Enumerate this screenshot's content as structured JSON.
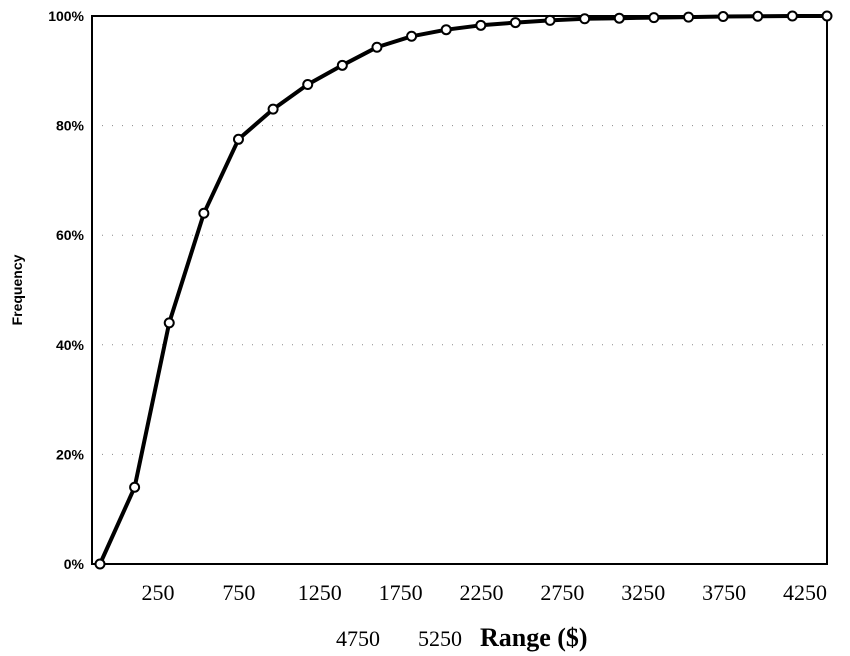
{
  "chart_data": {
    "type": "line",
    "ylabel": "Frequency",
    "xlabel": "Range ($)",
    "y_ticks": [
      "0%",
      "20%",
      "40%",
      "60%",
      "80%",
      "100%"
    ],
    "x_tick_labels": [
      "250",
      "750",
      "1250",
      "1750",
      "2250",
      "2750",
      "3250",
      "3750",
      "4250"
    ],
    "x_tick_labels_row2": [
      "4750",
      "5250"
    ],
    "ylim": [
      0,
      100
    ],
    "grid": true,
    "series": [
      {
        "values": [
          0,
          14,
          44,
          64,
          77.5,
          83,
          87.5,
          91,
          94.3,
          96.3,
          97.5,
          98.3,
          98.8,
          99.2,
          99.5,
          99.6,
          99.7,
          99.8,
          99.9,
          99.95,
          100,
          100
        ]
      }
    ]
  }
}
